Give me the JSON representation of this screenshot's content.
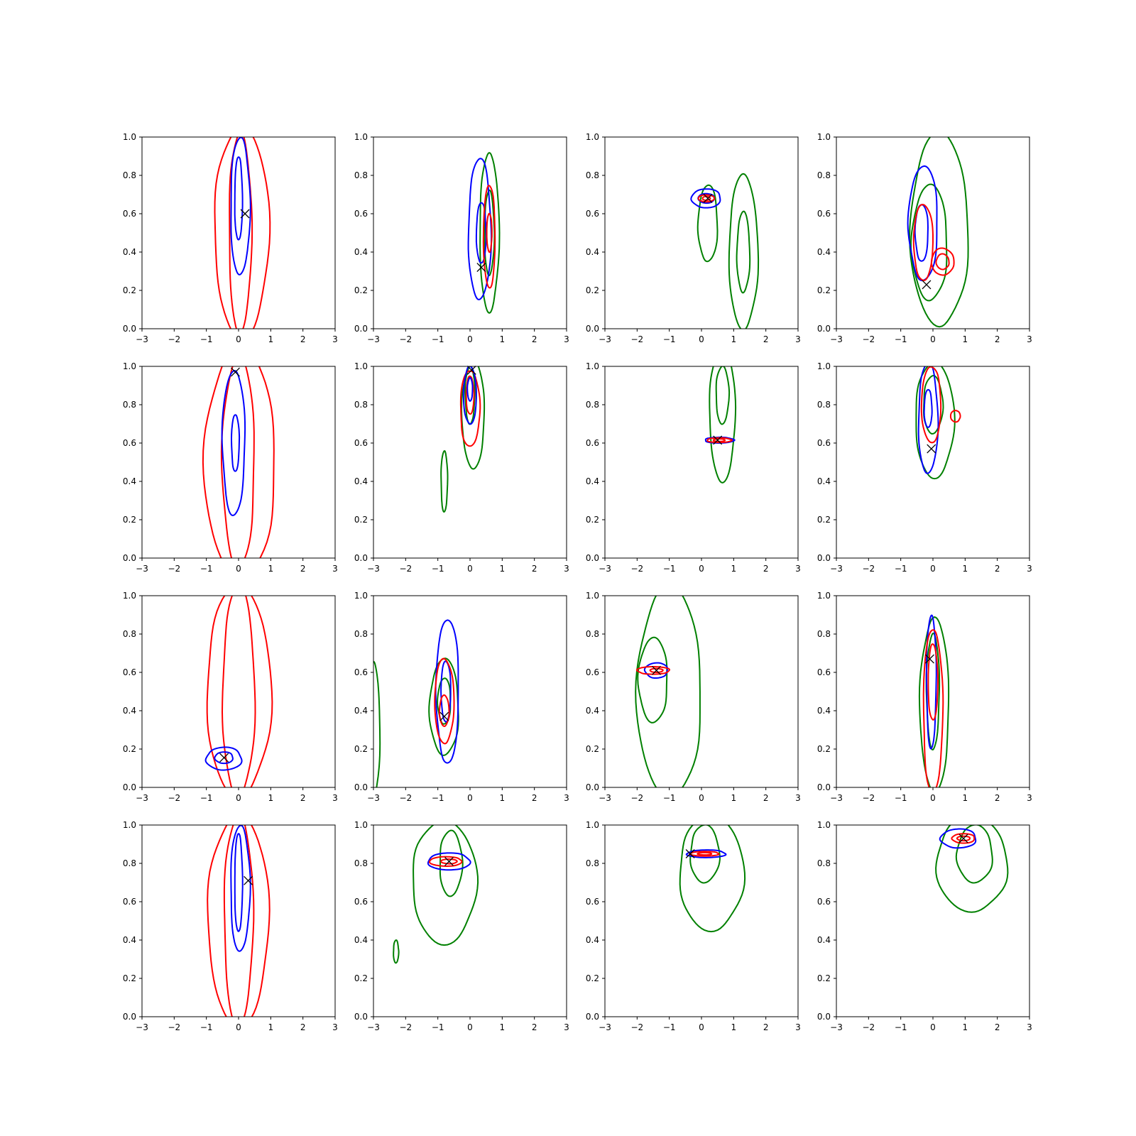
{
  "chart_data": {
    "type": "contour",
    "rows": 4,
    "cols": 4,
    "xlim": [
      -3,
      3
    ],
    "ylim": [
      0,
      1
    ],
    "xticks": [
      -3,
      -2,
      -1,
      0,
      1,
      2,
      3
    ],
    "yticks": [
      0.0,
      0.2,
      0.4,
      0.6,
      0.8,
      1.0
    ],
    "xtick_labels": [
      "−3",
      "−2",
      "−1",
      "0",
      "1",
      "2",
      "3"
    ],
    "ytick_labels": [
      "0.0",
      "0.2",
      "0.4",
      "0.6",
      "0.8",
      "1.0"
    ],
    "colors": {
      "red": "#ff0000",
      "blue": "#0000ff",
      "green": "#008000",
      "marker": "#000000"
    },
    "marker_symbol": "x",
    "panels": [
      {
        "row": 0,
        "col": 0,
        "marker": [
          0.2,
          0.6
        ],
        "contours": [
          {
            "color": "red",
            "cx": 0.1,
            "cy": 0.5,
            "rx": 0.85,
            "ry": 0.55
          },
          {
            "color": "red",
            "cx": 0.05,
            "cy": 0.5,
            "rx": 0.35,
            "ry": 0.52
          },
          {
            "color": "blue",
            "cx": 0.05,
            "cy": 0.64,
            "rx": 0.3,
            "ry": 0.36
          },
          {
            "color": "blue",
            "cx": 0.0,
            "cy": 0.68,
            "rx": 0.12,
            "ry": 0.22
          }
        ]
      },
      {
        "row": 0,
        "col": 1,
        "marker": [
          0.35,
          0.32
        ],
        "contours": [
          {
            "color": "green",
            "cx": 0.6,
            "cy": 0.5,
            "rx": 0.3,
            "ry": 0.41
          },
          {
            "color": "green",
            "cx": 0.6,
            "cy": 0.5,
            "rx": 0.15,
            "ry": 0.22
          },
          {
            "color": "blue",
            "cx": 0.3,
            "cy": 0.52,
            "rx": 0.35,
            "ry": 0.37
          },
          {
            "color": "blue",
            "cx": 0.35,
            "cy": 0.5,
            "rx": 0.15,
            "ry": 0.16
          },
          {
            "color": "red",
            "cx": 0.6,
            "cy": 0.48,
            "rx": 0.18,
            "ry": 0.27
          },
          {
            "color": "red",
            "cx": 0.6,
            "cy": 0.5,
            "rx": 0.08,
            "ry": 0.1
          }
        ]
      },
      {
        "row": 0,
        "col": 2,
        "marker": [
          0.2,
          0.68
        ],
        "contours": [
          {
            "color": "green",
            "cx": 1.3,
            "cy": 0.4,
            "rx": 0.45,
            "ry": 0.4
          },
          {
            "color": "green",
            "cx": 1.3,
            "cy": 0.4,
            "rx": 0.2,
            "ry": 0.21
          },
          {
            "color": "green",
            "cx": 0.2,
            "cy": 0.55,
            "rx": 0.3,
            "ry": 0.2
          },
          {
            "color": "blue",
            "cx": 0.15,
            "cy": 0.68,
            "rx": 0.45,
            "ry": 0.05
          },
          {
            "color": "blue",
            "cx": 0.15,
            "cy": 0.68,
            "rx": 0.25,
            "ry": 0.025
          },
          {
            "color": "red",
            "cx": 0.15,
            "cy": 0.68,
            "rx": 0.25,
            "ry": 0.018
          },
          {
            "color": "red",
            "cx": 0.15,
            "cy": 0.68,
            "rx": 0.12,
            "ry": 0.01
          }
        ]
      },
      {
        "row": 0,
        "col": 3,
        "marker": [
          -0.2,
          0.23
        ],
        "contours": [
          {
            "color": "green",
            "cx": 0.2,
            "cy": 0.52,
            "rx": 0.9,
            "ry": 0.5
          },
          {
            "color": "green",
            "cx": -0.1,
            "cy": 0.45,
            "rx": 0.55,
            "ry": 0.3
          },
          {
            "color": "blue",
            "cx": -0.3,
            "cy": 0.55,
            "rx": 0.45,
            "ry": 0.3
          },
          {
            "color": "blue",
            "cx": -0.35,
            "cy": 0.5,
            "rx": 0.2,
            "ry": 0.15
          },
          {
            "color": "red",
            "cx": -0.3,
            "cy": 0.45,
            "rx": 0.3,
            "ry": 0.2
          },
          {
            "color": "red",
            "cx": 0.3,
            "cy": 0.35,
            "rx": 0.35,
            "ry": 0.07
          },
          {
            "color": "red",
            "cx": 0.3,
            "cy": 0.35,
            "rx": 0.2,
            "ry": 0.04
          }
        ]
      },
      {
        "row": 1,
        "col": 0,
        "marker": [
          -0.1,
          0.97
        ],
        "contours": [
          {
            "color": "red",
            "cx": 0.05,
            "cy": 0.5,
            "rx": 1.1,
            "ry": 0.6
          },
          {
            "color": "red",
            "cx": 0.0,
            "cy": 0.5,
            "rx": 0.5,
            "ry": 0.55
          },
          {
            "color": "blue",
            "cx": -0.15,
            "cy": 0.6,
            "rx": 0.35,
            "ry": 0.38
          },
          {
            "color": "blue",
            "cx": -0.1,
            "cy": 0.6,
            "rx": 0.12,
            "ry": 0.15
          }
        ]
      },
      {
        "row": 1,
        "col": 1,
        "marker": [
          0.05,
          0.98
        ],
        "contours": [
          {
            "color": "green",
            "cx": 0.1,
            "cy": 0.75,
            "rx": 0.35,
            "ry": 0.28
          },
          {
            "color": "green",
            "cx": 0.0,
            "cy": 0.85,
            "rx": 0.15,
            "ry": 0.15
          },
          {
            "color": "green",
            "cx": -0.8,
            "cy": 0.4,
            "rx": 0.1,
            "ry": 0.16
          },
          {
            "color": "red",
            "cx": 0.0,
            "cy": 0.78,
            "rx": 0.3,
            "ry": 0.2
          },
          {
            "color": "red",
            "cx": 0.0,
            "cy": 0.85,
            "rx": 0.12,
            "ry": 0.1
          },
          {
            "color": "blue",
            "cx": 0.0,
            "cy": 0.85,
            "rx": 0.2,
            "ry": 0.15
          },
          {
            "color": "blue",
            "cx": 0.0,
            "cy": 0.88,
            "rx": 0.08,
            "ry": 0.06
          }
        ]
      },
      {
        "row": 1,
        "col": 2,
        "marker": [
          0.5,
          0.615
        ],
        "contours": [
          {
            "color": "green",
            "cx": 0.65,
            "cy": 0.75,
            "rx": 0.4,
            "ry": 0.35
          },
          {
            "color": "green",
            "cx": 0.65,
            "cy": 0.85,
            "rx": 0.2,
            "ry": 0.15
          },
          {
            "color": "blue",
            "cx": 0.55,
            "cy": 0.615,
            "rx": 0.45,
            "ry": 0.015
          },
          {
            "color": "red",
            "cx": 0.55,
            "cy": 0.615,
            "rx": 0.38,
            "ry": 0.012
          },
          {
            "color": "red",
            "cx": 0.55,
            "cy": 0.615,
            "rx": 0.18,
            "ry": 0.007
          }
        ]
      },
      {
        "row": 1,
        "col": 3,
        "marker": [
          -0.05,
          0.57
        ],
        "contours": [
          {
            "color": "green",
            "cx": 0.05,
            "cy": 0.72,
            "rx": 0.6,
            "ry": 0.3
          },
          {
            "color": "green",
            "cx": 0.0,
            "cy": 0.8,
            "rx": 0.3,
            "ry": 0.15
          },
          {
            "color": "blue",
            "cx": -0.15,
            "cy": 0.73,
            "rx": 0.3,
            "ry": 0.29
          },
          {
            "color": "blue",
            "cx": -0.15,
            "cy": 0.78,
            "rx": 0.12,
            "ry": 0.1
          },
          {
            "color": "red",
            "cx": -0.05,
            "cy": 0.8,
            "rx": 0.3,
            "ry": 0.2
          },
          {
            "color": "red",
            "cx": 0.7,
            "cy": 0.74,
            "rx": 0.15,
            "ry": 0.03
          }
        ]
      },
      {
        "row": 2,
        "col": 0,
        "marker": [
          -0.45,
          0.155
        ],
        "contours": [
          {
            "color": "red",
            "cx": 0.0,
            "cy": 0.5,
            "rx": 1.0,
            "ry": 0.55
          },
          {
            "color": "red",
            "cx": 0.0,
            "cy": 0.5,
            "rx": 0.5,
            "ry": 0.55
          },
          {
            "color": "blue",
            "cx": -0.45,
            "cy": 0.15,
            "rx": 0.55,
            "ry": 0.06
          },
          {
            "color": "blue",
            "cx": -0.45,
            "cy": 0.155,
            "rx": 0.28,
            "ry": 0.03
          }
        ]
      },
      {
        "row": 2,
        "col": 1,
        "marker": [
          -0.8,
          0.37
        ],
        "contours": [
          {
            "color": "green",
            "cx": -3.0,
            "cy": 0.3,
            "rx": 0.2,
            "ry": 0.35
          },
          {
            "color": "green",
            "cx": -0.8,
            "cy": 0.42,
            "rx": 0.45,
            "ry": 0.25
          },
          {
            "color": "green",
            "cx": -0.8,
            "cy": 0.45,
            "rx": 0.2,
            "ry": 0.12
          },
          {
            "color": "blue",
            "cx": -0.7,
            "cy": 0.5,
            "rx": 0.35,
            "ry": 0.38
          },
          {
            "color": "blue",
            "cx": -0.75,
            "cy": 0.5,
            "rx": 0.15,
            "ry": 0.16
          },
          {
            "color": "red",
            "cx": -0.8,
            "cy": 0.45,
            "rx": 0.3,
            "ry": 0.22
          },
          {
            "color": "red",
            "cx": -0.8,
            "cy": 0.4,
            "rx": 0.15,
            "ry": 0.08
          }
        ]
      },
      {
        "row": 2,
        "col": 2,
        "marker": [
          -1.4,
          0.61
        ],
        "contours": [
          {
            "color": "green",
            "cx": -1.0,
            "cy": 0.5,
            "rx": 1.0,
            "ry": 0.55
          },
          {
            "color": "green",
            "cx": -1.5,
            "cy": 0.56,
            "rx": 0.45,
            "ry": 0.22
          },
          {
            "color": "blue",
            "cx": -1.4,
            "cy": 0.61,
            "rx": 0.35,
            "ry": 0.04
          },
          {
            "color": "red",
            "cx": -1.5,
            "cy": 0.61,
            "rx": 0.5,
            "ry": 0.02
          },
          {
            "color": "red",
            "cx": -1.4,
            "cy": 0.61,
            "rx": 0.2,
            "ry": 0.01
          }
        ]
      },
      {
        "row": 2,
        "col": 3,
        "marker": [
          -0.1,
          0.67
        ],
        "contours": [
          {
            "color": "green",
            "cx": 0.05,
            "cy": 0.43,
            "rx": 0.45,
            "ry": 0.45
          },
          {
            "color": "green",
            "cx": 0.0,
            "cy": 0.5,
            "rx": 0.2,
            "ry": 0.3
          },
          {
            "color": "blue",
            "cx": -0.05,
            "cy": 0.55,
            "rx": 0.15,
            "ry": 0.35
          },
          {
            "color": "red",
            "cx": 0.0,
            "cy": 0.4,
            "rx": 0.3,
            "ry": 0.43
          },
          {
            "color": "red",
            "cx": 0.0,
            "cy": 0.55,
            "rx": 0.15,
            "ry": 0.2
          }
        ]
      },
      {
        "row": 3,
        "col": 0,
        "marker": [
          0.3,
          0.71
        ],
        "contours": [
          {
            "color": "red",
            "cx": 0.0,
            "cy": 0.5,
            "rx": 0.95,
            "ry": 0.55
          },
          {
            "color": "red",
            "cx": 0.0,
            "cy": 0.5,
            "rx": 0.45,
            "ry": 0.55
          },
          {
            "color": "blue",
            "cx": 0.05,
            "cy": 0.67,
            "rx": 0.3,
            "ry": 0.33
          },
          {
            "color": "blue",
            "cx": 0.0,
            "cy": 0.7,
            "rx": 0.12,
            "ry": 0.26
          }
        ]
      },
      {
        "row": 3,
        "col": 1,
        "marker": [
          -0.65,
          0.81
        ],
        "contours": [
          {
            "color": "green",
            "cx": -0.8,
            "cy": 0.7,
            "rx": 1.0,
            "ry": 0.32
          },
          {
            "color": "green",
            "cx": -0.6,
            "cy": 0.8,
            "rx": 0.35,
            "ry": 0.17
          },
          {
            "color": "green",
            "cx": -2.3,
            "cy": 0.34,
            "rx": 0.08,
            "ry": 0.06
          },
          {
            "color": "blue",
            "cx": -0.65,
            "cy": 0.81,
            "rx": 0.65,
            "ry": 0.045
          },
          {
            "color": "red",
            "cx": -0.75,
            "cy": 0.81,
            "rx": 0.5,
            "ry": 0.025
          },
          {
            "color": "red",
            "cx": -0.65,
            "cy": 0.81,
            "rx": 0.25,
            "ry": 0.012
          }
        ]
      },
      {
        "row": 3,
        "col": 2,
        "marker": [
          -0.35,
          0.85
        ],
        "contours": [
          {
            "color": "green",
            "cx": 0.3,
            "cy": 0.75,
            "rx": 1.0,
            "ry": 0.3
          },
          {
            "color": "green",
            "cx": 0.1,
            "cy": 0.85,
            "rx": 0.45,
            "ry": 0.15
          },
          {
            "color": "blue",
            "cx": 0.15,
            "cy": 0.85,
            "rx": 0.6,
            "ry": 0.02
          },
          {
            "color": "red",
            "cx": 0.1,
            "cy": 0.85,
            "rx": 0.45,
            "ry": 0.012
          },
          {
            "color": "red",
            "cx": 0.1,
            "cy": 0.85,
            "rx": 0.22,
            "ry": 0.006
          }
        ]
      },
      {
        "row": 3,
        "col": 3,
        "marker": [
          0.95,
          0.93
        ],
        "contours": [
          {
            "color": "green",
            "cx": 1.2,
            "cy": 0.8,
            "rx": 1.1,
            "ry": 0.25
          },
          {
            "color": "green",
            "cx": 1.3,
            "cy": 0.85,
            "rx": 0.55,
            "ry": 0.15
          },
          {
            "color": "blue",
            "cx": 0.8,
            "cy": 0.93,
            "rx": 0.55,
            "ry": 0.05
          },
          {
            "color": "red",
            "cx": 0.95,
            "cy": 0.93,
            "rx": 0.35,
            "ry": 0.025
          },
          {
            "color": "red",
            "cx": 0.95,
            "cy": 0.93,
            "rx": 0.2,
            "ry": 0.012
          }
        ]
      }
    ]
  }
}
